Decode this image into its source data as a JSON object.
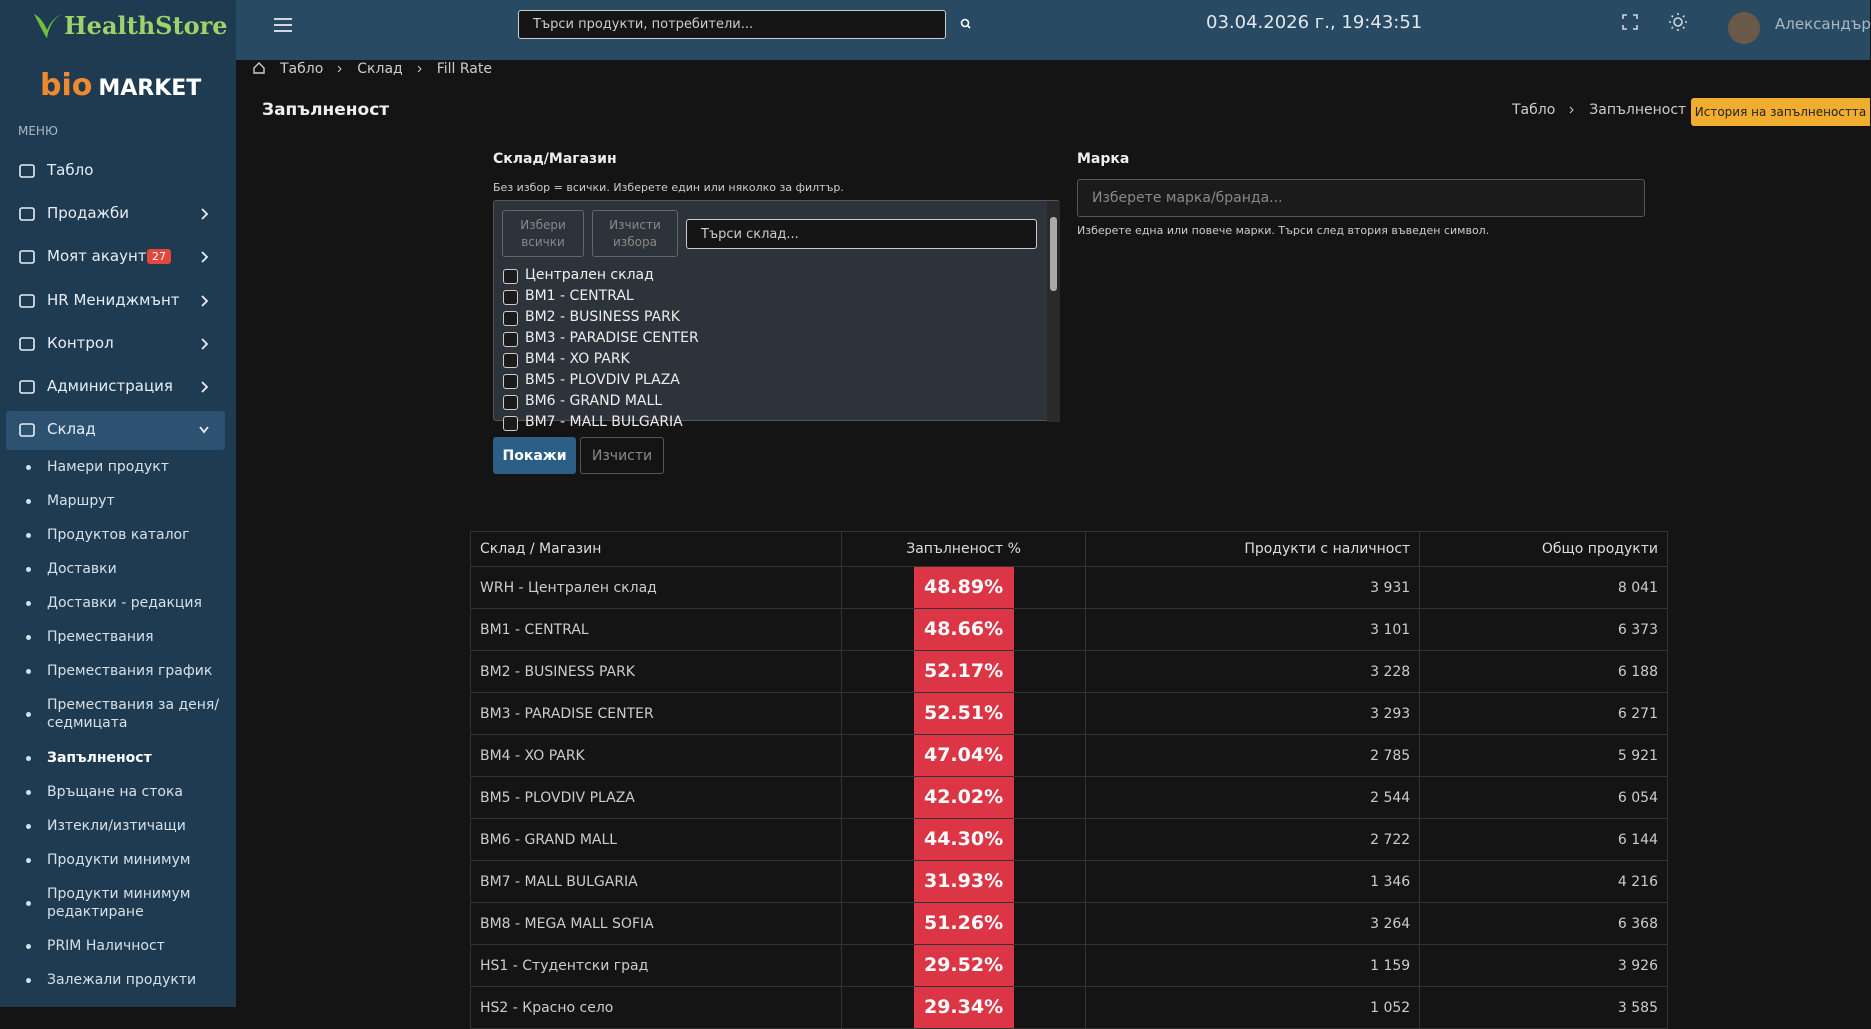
{
  "sidebar": {
    "brand": "HealthStore",
    "logo": {
      "part1": "bio",
      "part2": "MARKET"
    },
    "menu_label": "МЕНЮ",
    "items": [
      {
        "label": "Табло"
      },
      {
        "label": "Продажби"
      },
      {
        "label": "Моят акаунт",
        "badge": "27"
      },
      {
        "label": "HR Мениджмънт"
      },
      {
        "label": "Контрол"
      },
      {
        "label": "Администрация"
      },
      {
        "label": "Склад"
      }
    ],
    "subitems": [
      "Намери продукт",
      "Маршрут",
      "Продуктов каталог",
      "Доставки",
      "Доставки - редакция",
      "Премествания",
      "Премествания график",
      "Премествания за деня/ седмицата",
      "Запълненост",
      "Връщане на стока",
      "Изтекли/изтичащи",
      "Продукти минимум",
      "Продукти минимум редактиране",
      "PRIM Наличност",
      "Залежали продукти"
    ]
  },
  "header": {
    "search_placeholder": "Търси продукти, потребители...",
    "datetime": "03.04.2026 г., 19:43:51",
    "user": "Александър"
  },
  "breadcrumb": [
    "Табло",
    "Склад",
    "Fill Rate"
  ],
  "page": {
    "title": "Запълненост",
    "breadcrumb": [
      "Табло",
      "Запълненост"
    ],
    "history_button": "История на запълнеността"
  },
  "filter": {
    "store_label": "Склад/Магазин",
    "store_hint": "Без избор = всички. Изберете един или няколко за филтър.",
    "select_all": "Избери всички",
    "clear_selection": "Изчисти избора",
    "store_search_placeholder": "Търси склад...",
    "stores": [
      "Централен склад",
      "BM1 - CENTRAL",
      "BM2 - BUSINESS PARK",
      "BM3 - PARADISE CENTER",
      "BM4 - XO PARK",
      "BM5 - PLOVDIV PLAZA",
      "BM6 - GRAND MALL",
      "BM7 - MALL BULGARIA"
    ],
    "brand_label": "Марка",
    "brand_placeholder": "Изберете марка/бранда...",
    "brand_hint": "Изберете една или повече марки. Търси след втория въведен символ.",
    "show": "Покажи",
    "clear": "Изчисти"
  },
  "table": {
    "columns": [
      "Склад / Магазин",
      "Запълненост %",
      "Продукти с наличност",
      "Общо продукти"
    ],
    "rows": [
      [
        "WRH - Централен склад",
        "48.89%",
        "3 931",
        "8 041"
      ],
      [
        "BM1 - CENTRAL",
        "48.66%",
        "3 101",
        "6 373"
      ],
      [
        "BM2 - BUSINESS PARK",
        "52.17%",
        "3 228",
        "6 188"
      ],
      [
        "BM3 - PARADISE CENTER",
        "52.51%",
        "3 293",
        "6 271"
      ],
      [
        "BM4 - XO PARK",
        "47.04%",
        "2 785",
        "5 921"
      ],
      [
        "BM5 - PLOVDIV PLAZA",
        "42.02%",
        "2 544",
        "6 054"
      ],
      [
        "BM6 - GRAND MALL",
        "44.30%",
        "2 722",
        "6 144"
      ],
      [
        "BM7 - MALL BULGARIA",
        "31.93%",
        "1 346",
        "4 216"
      ],
      [
        "BM8 - MEGA MALL SOFIA",
        "51.26%",
        "3 264",
        "6 368"
      ],
      [
        "HS1 - Студентски град",
        "29.52%",
        "1 159",
        "3 926"
      ],
      [
        "HS2 - Красно село",
        "29.34%",
        "1 052",
        "3 585"
      ]
    ]
  }
}
